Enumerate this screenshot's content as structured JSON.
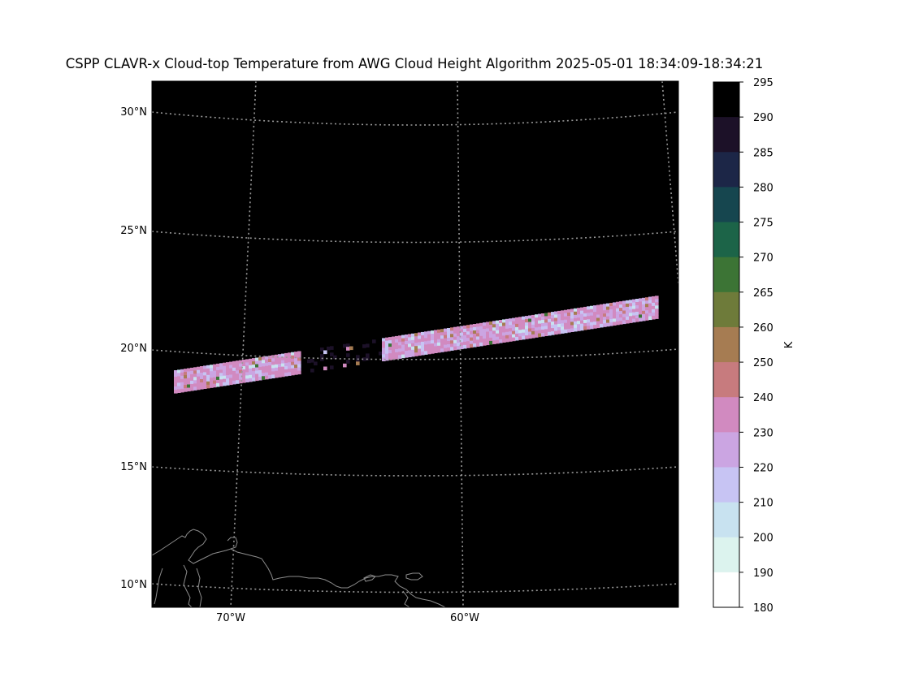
{
  "title": "CSPP CLAVR-x Cloud-top Temperature from AWG Cloud Height Algorithm 2025-05-01 18:34:09-18:34:21",
  "map": {
    "lat_ticks": [
      "30°N",
      "25°N",
      "20°N",
      "15°N",
      "10°N"
    ],
    "lon_ticks": [
      "70°W",
      "60°W"
    ],
    "background_color": "#000000",
    "gridline_color": "#999999",
    "coastline_color": "#8c8c8c",
    "swath_palette": [
      "#d18ac0",
      "#cba5e2",
      "#c7c4f3",
      "#c8e2f0",
      "#c77b7e",
      "#a67c52",
      "#6e7b3a",
      "#3c7435"
    ]
  },
  "colorbar": {
    "unit_label": "K",
    "tick_labels": [
      "295",
      "290",
      "285",
      "280",
      "275",
      "270",
      "265",
      "260",
      "250",
      "240",
      "230",
      "220",
      "210",
      "200",
      "190",
      "180"
    ],
    "bins": [
      {
        "from": 290,
        "to": 295,
        "color": "#000000"
      },
      {
        "from": 285,
        "to": 290,
        "color": "#1c1128"
      },
      {
        "from": 280,
        "to": 285,
        "color": "#1c2647"
      },
      {
        "from": 275,
        "to": 280,
        "color": "#16464f"
      },
      {
        "from": 270,
        "to": 275,
        "color": "#1c6448"
      },
      {
        "from": 265,
        "to": 270,
        "color": "#3c7435"
      },
      {
        "from": 260,
        "to": 265,
        "color": "#6e7b3a"
      },
      {
        "from": 250,
        "to": 260,
        "color": "#a67c52"
      },
      {
        "from": 240,
        "to": 250,
        "color": "#c77b7e"
      },
      {
        "from": 230,
        "to": 240,
        "color": "#d18ac0"
      },
      {
        "from": 220,
        "to": 230,
        "color": "#cba5e2"
      },
      {
        "from": 210,
        "to": 220,
        "color": "#c7c4f3"
      },
      {
        "from": 200,
        "to": 210,
        "color": "#c8e2f0"
      },
      {
        "from": 190,
        "to": 200,
        "color": "#dcf3ee"
      },
      {
        "from": 180,
        "to": 190,
        "color": "#ffffff"
      }
    ]
  }
}
